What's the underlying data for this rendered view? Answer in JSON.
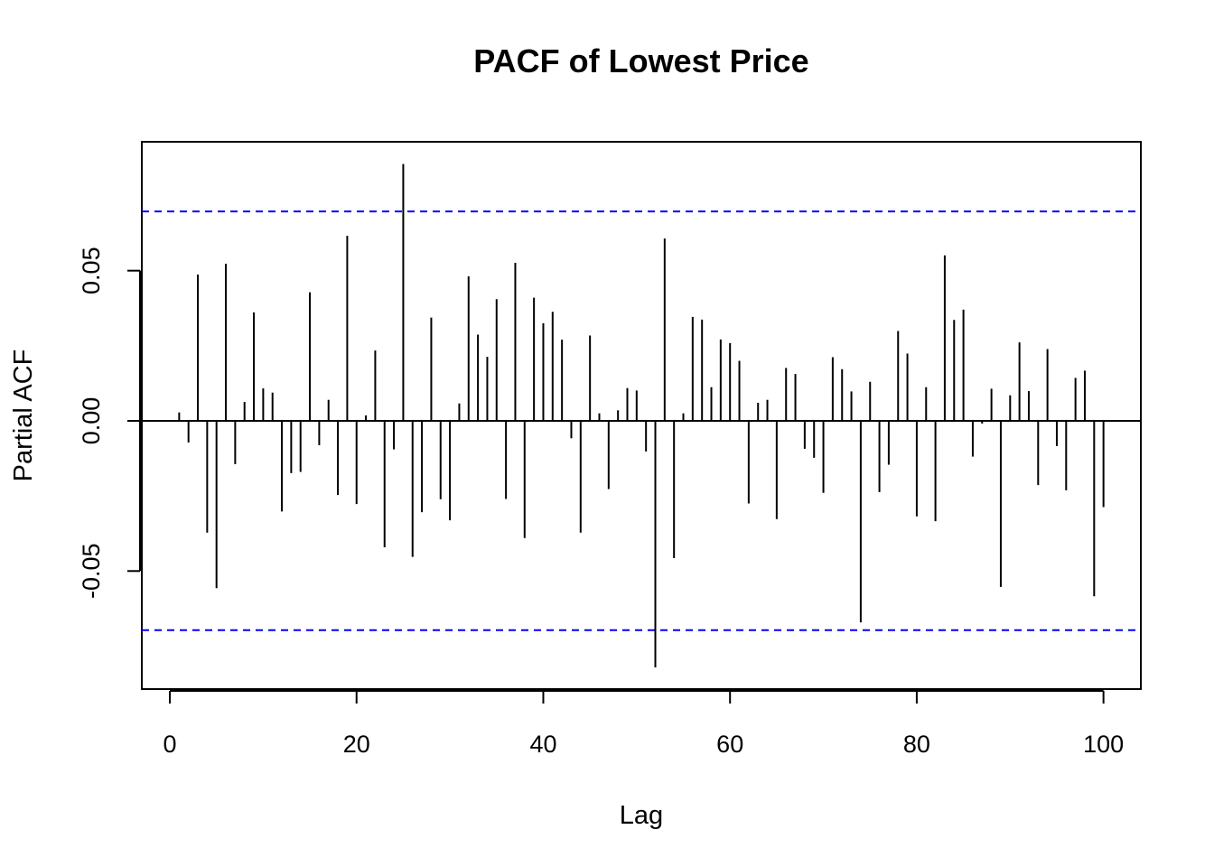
{
  "chart_data": {
    "type": "bar",
    "title": "PACF of Lowest Price",
    "xlabel": "Lag",
    "ylabel": "Partial ACF",
    "xlim": [
      -3,
      104
    ],
    "ylim": [
      -0.0893,
      0.0929
    ],
    "x_ticks": [
      0,
      20,
      40,
      60,
      80,
      100
    ],
    "x_tick_labels": [
      "0",
      "20",
      "40",
      "60",
      "80",
      "100"
    ],
    "y_ticks": [
      -0.05,
      0.0,
      0.05
    ],
    "y_tick_labels": [
      "-0.05",
      "0.00",
      "0.05"
    ],
    "confidence_bounds": [
      0.0697,
      -0.0697
    ],
    "colors": {
      "bars": "#000000",
      "bounds": "#0000ff",
      "frame": "#000000"
    },
    "lags": [
      1,
      2,
      3,
      4,
      5,
      6,
      7,
      8,
      9,
      10,
      11,
      12,
      13,
      14,
      15,
      16,
      17,
      18,
      19,
      20,
      21,
      22,
      23,
      24,
      25,
      26,
      27,
      28,
      29,
      30,
      31,
      32,
      33,
      34,
      35,
      36,
      37,
      38,
      39,
      40,
      41,
      42,
      43,
      44,
      45,
      46,
      47,
      48,
      49,
      50,
      51,
      52,
      53,
      54,
      55,
      56,
      57,
      58,
      59,
      60,
      61,
      62,
      63,
      64,
      65,
      66,
      67,
      68,
      69,
      70,
      71,
      72,
      73,
      74,
      75,
      76,
      77,
      78,
      79,
      80,
      81,
      82,
      83,
      84,
      85,
      86,
      87,
      88,
      89,
      90,
      91,
      92,
      93,
      94,
      95,
      96,
      97,
      98,
      99,
      100
    ],
    "values": [
      0.0028,
      -0.0072,
      0.0487,
      -0.0372,
      -0.0557,
      0.0523,
      -0.0144,
      0.0063,
      0.0361,
      0.0108,
      0.0094,
      -0.0302,
      -0.0174,
      -0.017,
      0.0428,
      -0.0081,
      0.007,
      -0.0247,
      0.0616,
      -0.0277,
      0.0018,
      0.0234,
      -0.0421,
      -0.0095,
      0.0855,
      -0.0453,
      -0.0304,
      0.0344,
      -0.0261,
      -0.0331,
      0.0058,
      0.0481,
      0.0287,
      0.0213,
      0.0405,
      -0.026,
      0.0526,
      -0.039,
      0.041,
      0.0325,
      0.0363,
      0.027,
      -0.0058,
      -0.0372,
      0.0284,
      0.0025,
      -0.0227,
      0.0035,
      0.0109,
      0.0101,
      -0.0102,
      -0.0821,
      0.0607,
      -0.0457,
      0.0025,
      0.0346,
      0.0337,
      0.0112,
      0.0271,
      0.0259,
      0.02,
      -0.0275,
      0.006,
      0.007,
      -0.0327,
      0.0176,
      0.0156,
      -0.0093,
      -0.0123,
      -0.024,
      0.0212,
      0.0172,
      0.0098,
      -0.0671,
      0.013,
      -0.0237,
      -0.0146,
      0.0299,
      0.0224,
      -0.0318,
      0.0112,
      -0.0334,
      0.0551,
      0.0336,
      0.037,
      -0.0119,
      -0.0009,
      0.0107,
      -0.0553,
      0.0085,
      0.0261,
      0.0099,
      -0.0214,
      0.0239,
      -0.0084,
      -0.0231,
      0.0143,
      0.0167,
      -0.0584,
      -0.0287
    ]
  }
}
